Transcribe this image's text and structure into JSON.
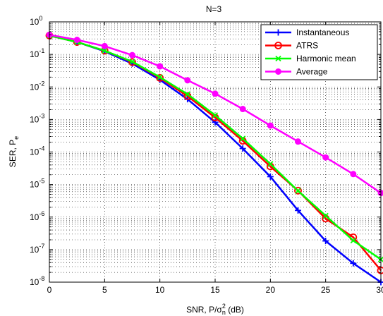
{
  "chart_data": {
    "type": "line",
    "title": "N=3",
    "xlabel": {
      "pre": "SNR, P/σ",
      "sup": "2",
      "sub": "n",
      "post": " (dB)"
    },
    "ylabel": {
      "pre": "SER, P",
      "sub": "e"
    },
    "xlim": [
      0,
      30
    ],
    "ylim": [
      1e-08,
      1
    ],
    "yscale": "log",
    "grid": "on (dotted, with minor log lines)",
    "legend_position": "top-right",
    "xticks": [
      "0",
      "5",
      "10",
      "15",
      "20",
      "25",
      "30"
    ],
    "yticks": [
      {
        "base": "10",
        "exp": "0"
      },
      {
        "base": "10",
        "exp": "-1"
      },
      {
        "base": "10",
        "exp": "-2"
      },
      {
        "base": "10",
        "exp": "-3"
      },
      {
        "base": "10",
        "exp": "-4"
      },
      {
        "base": "10",
        "exp": "-5"
      },
      {
        "base": "10",
        "exp": "-6"
      },
      {
        "base": "10",
        "exp": "-7"
      },
      {
        "base": "10",
        "exp": "-8"
      }
    ],
    "x": [
      0,
      2.5,
      5,
      7.5,
      10,
      12.5,
      15,
      17.5,
      20,
      22.5,
      25,
      27.5,
      30
    ],
    "series": [
      {
        "name": "Instantaneous",
        "color": "#0000ff",
        "marker": "plus",
        "values": [
          0.38,
          0.24,
          0.125,
          0.052,
          0.0165,
          0.0042,
          0.00082,
          0.000128,
          1.75e-05,
          1.6e-06,
          1.85e-07,
          3.8e-08,
          1e-08
        ]
      },
      {
        "name": "ATRS",
        "color": "#ff0000",
        "marker": "circle",
        "values": [
          0.38,
          0.24,
          0.13,
          0.058,
          0.019,
          0.0052,
          0.00115,
          0.00022,
          3.6e-05,
          6.5e-06,
          9e-07,
          2.4e-07,
          2.3e-08
        ]
      },
      {
        "name": "Harmonic mean",
        "color": "#00ff00",
        "marker": "x",
        "values": [
          0.38,
          0.24,
          0.13,
          0.06,
          0.02,
          0.006,
          0.00135,
          0.00026,
          4.3e-05,
          6.4e-06,
          1.1e-06,
          1.9e-07,
          5e-08
        ]
      },
      {
        "name": "Average",
        "color": "#ff00ff",
        "marker": "dot",
        "values": [
          0.4,
          0.28,
          0.18,
          0.095,
          0.043,
          0.016,
          0.0062,
          0.0021,
          0.00065,
          0.00021,
          6.8e-05,
          2.1e-05,
          5.5e-06
        ]
      }
    ]
  }
}
